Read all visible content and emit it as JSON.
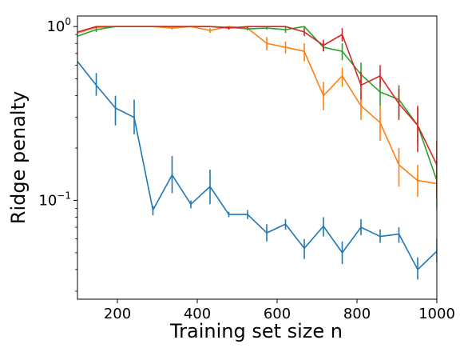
{
  "chart_data": {
    "type": "line",
    "title": "",
    "xlabel": "Training set size n",
    "ylabel": "Ridge penalty",
    "xlim": [
      100,
      1000
    ],
    "ylim": [
      0.027,
      1.15
    ],
    "yscale": "log",
    "grid": false,
    "x_ticks": [
      200,
      400,
      600,
      800,
      1000
    ],
    "y_ticks": [
      {
        "value": 1.0,
        "base": "10",
        "exp": "0"
      },
      {
        "value": 0.1,
        "base": "10",
        "exp": "−1"
      }
    ],
    "x": [
      100,
      147,
      195,
      242,
      289,
      337,
      384,
      432,
      479,
      526,
      574,
      621,
      668,
      716,
      763,
      810,
      858,
      905,
      952,
      1000
    ],
    "series": [
      {
        "color": "#1f77b4",
        "values": [
          0.63,
          0.46,
          0.34,
          0.3,
          0.088,
          0.14,
          0.095,
          0.12,
          0.083,
          0.083,
          0.065,
          0.073,
          0.053,
          0.071,
          0.05,
          0.07,
          0.062,
          0.064,
          0.04,
          0.051
        ],
        "err_low": [
          0.63,
          0.4,
          0.27,
          0.24,
          0.082,
          0.11,
          0.09,
          0.095,
          0.08,
          0.078,
          0.058,
          0.068,
          0.046,
          0.062,
          0.043,
          0.063,
          0.057,
          0.057,
          0.035,
          0.044
        ],
        "err_high": [
          0.63,
          0.54,
          0.4,
          0.38,
          0.093,
          0.18,
          0.1,
          0.15,
          0.086,
          0.088,
          0.073,
          0.078,
          0.06,
          0.08,
          0.058,
          0.078,
          0.068,
          0.07,
          0.047,
          0.06
        ]
      },
      {
        "color": "#ff7f0e",
        "values": [
          0.92,
          0.99,
          1.0,
          1.0,
          1.0,
          0.98,
          1.0,
          0.95,
          1.0,
          0.98,
          0.8,
          0.76,
          0.72,
          0.4,
          0.52,
          0.35,
          0.28,
          0.16,
          0.13,
          0.125
        ],
        "err_low": [
          0.92,
          0.97,
          1.0,
          1.0,
          1.0,
          0.96,
          0.99,
          0.92,
          0.98,
          0.96,
          0.73,
          0.7,
          0.63,
          0.33,
          0.45,
          0.29,
          0.22,
          0.12,
          0.105,
          0.1
        ],
        "err_high": [
          0.92,
          1.0,
          1.0,
          1.0,
          1.0,
          1.0,
          1.0,
          0.98,
          1.0,
          1.0,
          0.87,
          0.82,
          0.8,
          0.48,
          0.58,
          0.42,
          0.35,
          0.2,
          0.16,
          0.15
        ]
      },
      {
        "color": "#2ca02c",
        "values": [
          0.88,
          0.96,
          1.0,
          1.0,
          1.0,
          1.0,
          1.0,
          1.0,
          0.99,
          0.97,
          0.98,
          0.96,
          1.0,
          0.76,
          0.72,
          0.53,
          0.42,
          0.38,
          0.27,
          0.13
        ],
        "err_low": [
          0.88,
          0.93,
          1.0,
          1.0,
          1.0,
          1.0,
          1.0,
          1.0,
          0.97,
          0.95,
          0.96,
          0.92,
          0.98,
          0.72,
          0.64,
          0.45,
          0.35,
          0.3,
          0.21,
          0.09
        ],
        "err_high": [
          0.88,
          0.99,
          1.0,
          1.0,
          1.0,
          1.0,
          1.0,
          1.0,
          1.0,
          0.99,
          1.0,
          1.0,
          1.0,
          0.8,
          0.8,
          0.62,
          0.5,
          0.46,
          0.34,
          0.17
        ]
      },
      {
        "color": "#d62728",
        "values": [
          0.93,
          1.0,
          1.0,
          1.0,
          1.0,
          1.0,
          1.0,
          1.0,
          0.98,
          1.0,
          1.0,
          1.0,
          0.93,
          0.78,
          0.9,
          0.46,
          0.52,
          0.36,
          0.27,
          0.16
        ],
        "err_low": [
          0.93,
          0.98,
          1.0,
          1.0,
          1.0,
          1.0,
          1.0,
          1.0,
          0.96,
          0.98,
          1.0,
          1.0,
          0.88,
          0.72,
          0.82,
          0.38,
          0.45,
          0.29,
          0.19,
          0.11
        ],
        "err_high": [
          0.93,
          1.0,
          1.0,
          1.0,
          1.0,
          1.0,
          1.0,
          1.0,
          1.0,
          1.0,
          1.0,
          1.0,
          0.98,
          0.84,
          0.98,
          0.55,
          0.6,
          0.44,
          0.35,
          0.22
        ]
      }
    ]
  }
}
